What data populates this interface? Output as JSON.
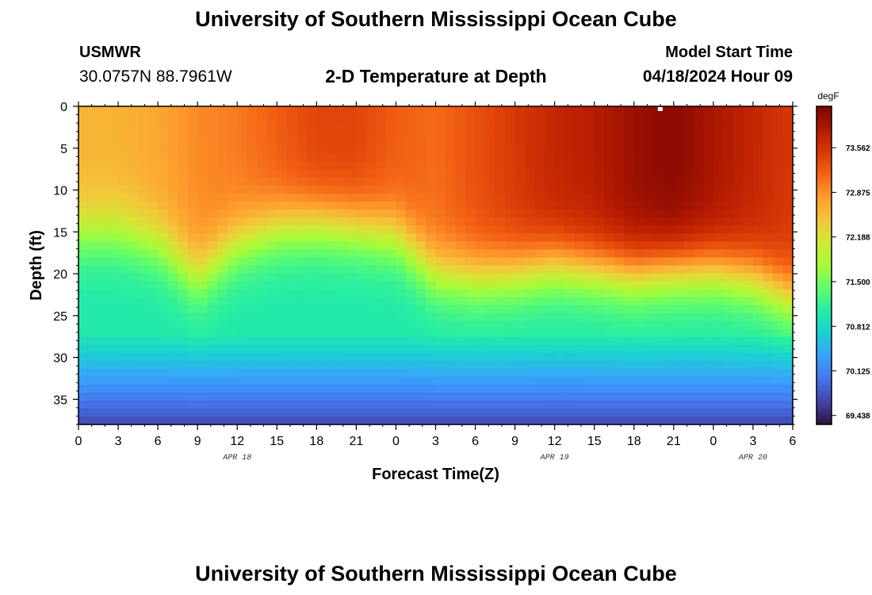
{
  "header": {
    "title": "University of Southern Mississippi Ocean Cube",
    "station_id": "USMWR",
    "coords": "30.0757N  88.7961W",
    "chart_title": "2-D Temperature at Depth",
    "model_start_label": "Model Start Time",
    "model_start_value": "04/18/2024 Hour 09"
  },
  "footer": {
    "title": "University of Southern Mississippi Ocean Cube"
  },
  "colors": {
    "colormap": [
      "#30123b",
      "#4145ab",
      "#4675ed",
      "#39a2fc",
      "#1bcfd4",
      "#24eca6",
      "#61fc6c",
      "#a4fc3b",
      "#d1e834",
      "#f3c63a",
      "#fe9b2d",
      "#f36315",
      "#d93806",
      "#b11901",
      "#7a0403"
    ]
  },
  "chart_data": {
    "type": "heatmap",
    "xlabel": "Forecast Time(Z)",
    "ylabel": "Depth (ft)",
    "x_ticks": [
      "0",
      "3",
      "6",
      "9",
      "12",
      "15",
      "18",
      "21",
      "0",
      "3",
      "6",
      "9",
      "12",
      "15",
      "18",
      "21",
      "0",
      "3",
      "6"
    ],
    "x_range_hours": [
      0,
      54
    ],
    "date_labels": [
      {
        "label": "APR 18",
        "hour": 12
      },
      {
        "label": "APR 19",
        "hour": 36
      },
      {
        "label": "APR 20",
        "hour": 51
      }
    ],
    "y_ticks": [
      "0",
      "5",
      "10",
      "15",
      "20",
      "25",
      "30",
      "35"
    ],
    "y_range_ft": [
      0,
      38
    ],
    "colorbar": {
      "unit": "degF",
      "ticks": [
        "73.562",
        "72.875",
        "72.188",
        "71.500",
        "70.812",
        "70.125",
        "69.438"
      ],
      "range": [
        69.3,
        74.2
      ]
    },
    "profiles": [
      {
        "hour": 0,
        "surface": 72.6,
        "thermocline_ft": 15.0
      },
      {
        "hour": 3,
        "surface": 72.6,
        "thermocline_ft": 15.0
      },
      {
        "hour": 6,
        "surface": 72.7,
        "thermocline_ft": 16.5
      },
      {
        "hour": 9,
        "surface": 72.9,
        "thermocline_ft": 20.5
      },
      {
        "hour": 12,
        "surface": 73.0,
        "thermocline_ft": 16.5
      },
      {
        "hour": 15,
        "surface": 73.2,
        "thermocline_ft": 14.5
      },
      {
        "hour": 18,
        "surface": 73.4,
        "thermocline_ft": 14.0
      },
      {
        "hour": 21,
        "surface": 73.4,
        "thermocline_ft": 14.5
      },
      {
        "hour": 24,
        "surface": 73.2,
        "thermocline_ft": 15.5
      },
      {
        "hour": 27,
        "surface": 73.1,
        "thermocline_ft": 20.0
      },
      {
        "hour": 30,
        "surface": 73.3,
        "thermocline_ft": 20.5
      },
      {
        "hour": 33,
        "surface": 73.5,
        "thermocline_ft": 20.0
      },
      {
        "hour": 36,
        "surface": 73.7,
        "thermocline_ft": 19.0
      },
      {
        "hour": 39,
        "surface": 73.8,
        "thermocline_ft": 19.5
      },
      {
        "hour": 42,
        "surface": 74.0,
        "thermocline_ft": 20.0
      },
      {
        "hour": 45,
        "surface": 74.1,
        "thermocline_ft": 19.5
      },
      {
        "hour": 48,
        "surface": 73.9,
        "thermocline_ft": 19.5
      },
      {
        "hour": 51,
        "surface": 73.7,
        "thermocline_ft": 20.5
      },
      {
        "hour": 54,
        "surface": 73.5,
        "thermocline_ft": 23.0
      }
    ]
  }
}
